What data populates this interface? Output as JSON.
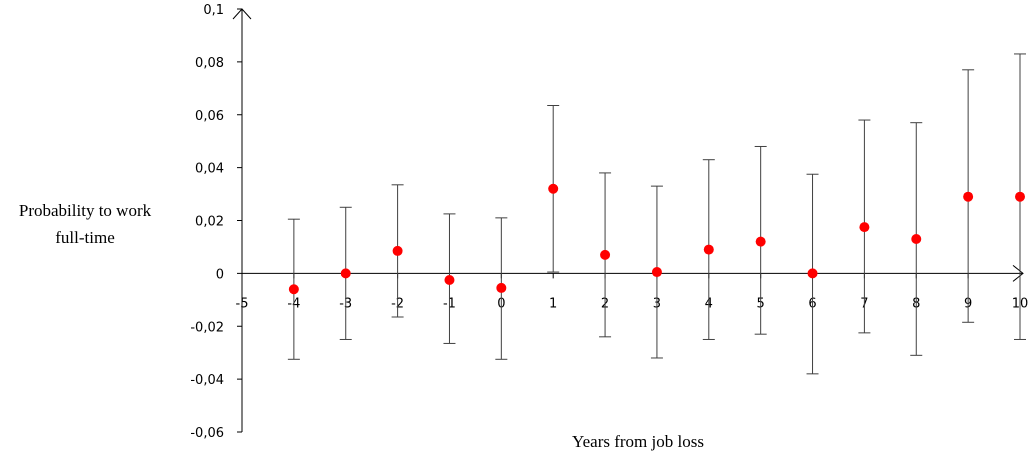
{
  "chart_data": {
    "type": "scatter",
    "title": "",
    "xlabel": "Years from job loss",
    "ylabel_lines": [
      "Probability to work",
      "full-time"
    ],
    "xlim": [
      -5,
      10
    ],
    "ylim": [
      -0.06,
      0.1
    ],
    "x_ticks": [
      -5,
      -4,
      -3,
      -2,
      -1,
      0,
      1,
      2,
      3,
      4,
      5,
      6,
      7,
      8,
      9,
      10
    ],
    "x_tick_labels": [
      "-5",
      "-4",
      "-3",
      "-2",
      "-1",
      "0",
      "1",
      "2",
      "3",
      "4",
      "5",
      "6",
      "7",
      "8",
      "9",
      "10"
    ],
    "y_ticks": [
      -0.06,
      -0.04,
      -0.02,
      0,
      0.02,
      0.04,
      0.06,
      0.08,
      0.1
    ],
    "y_tick_labels": [
      "-0,06",
      "-0,04",
      "-0,02",
      "0",
      "0,02",
      "0,04",
      "0,06",
      "0,08",
      "0,1"
    ],
    "grid": false,
    "marker_color": "#ff0000",
    "error_bar_color": "#404040",
    "points": [
      {
        "x": -4,
        "y": -0.006,
        "lo": -0.0325,
        "hi": 0.0205
      },
      {
        "x": -3,
        "y": 0.0,
        "lo": -0.025,
        "hi": 0.025
      },
      {
        "x": -2,
        "y": 0.0085,
        "lo": -0.0165,
        "hi": 0.0335
      },
      {
        "x": -1,
        "y": -0.0025,
        "lo": -0.0265,
        "hi": 0.0225
      },
      {
        "x": 0,
        "y": -0.0055,
        "lo": -0.0325,
        "hi": 0.021
      },
      {
        "x": 1,
        "y": 0.032,
        "lo": 0.0005,
        "hi": 0.0635
      },
      {
        "x": 2,
        "y": 0.007,
        "lo": -0.024,
        "hi": 0.038
      },
      {
        "x": 3,
        "y": 0.0005,
        "lo": -0.032,
        "hi": 0.033
      },
      {
        "x": 4,
        "y": 0.009,
        "lo": -0.025,
        "hi": 0.043
      },
      {
        "x": 5,
        "y": 0.012,
        "lo": -0.023,
        "hi": 0.048
      },
      {
        "x": 6,
        "y": 0.0,
        "lo": -0.038,
        "hi": 0.0375
      },
      {
        "x": 7,
        "y": 0.0175,
        "lo": -0.0225,
        "hi": 0.058
      },
      {
        "x": 8,
        "y": 0.013,
        "lo": -0.031,
        "hi": 0.057
      },
      {
        "x": 9,
        "y": 0.029,
        "lo": -0.0185,
        "hi": 0.077
      },
      {
        "x": 10,
        "y": 0.029,
        "lo": -0.025,
        "hi": 0.083
      }
    ]
  }
}
